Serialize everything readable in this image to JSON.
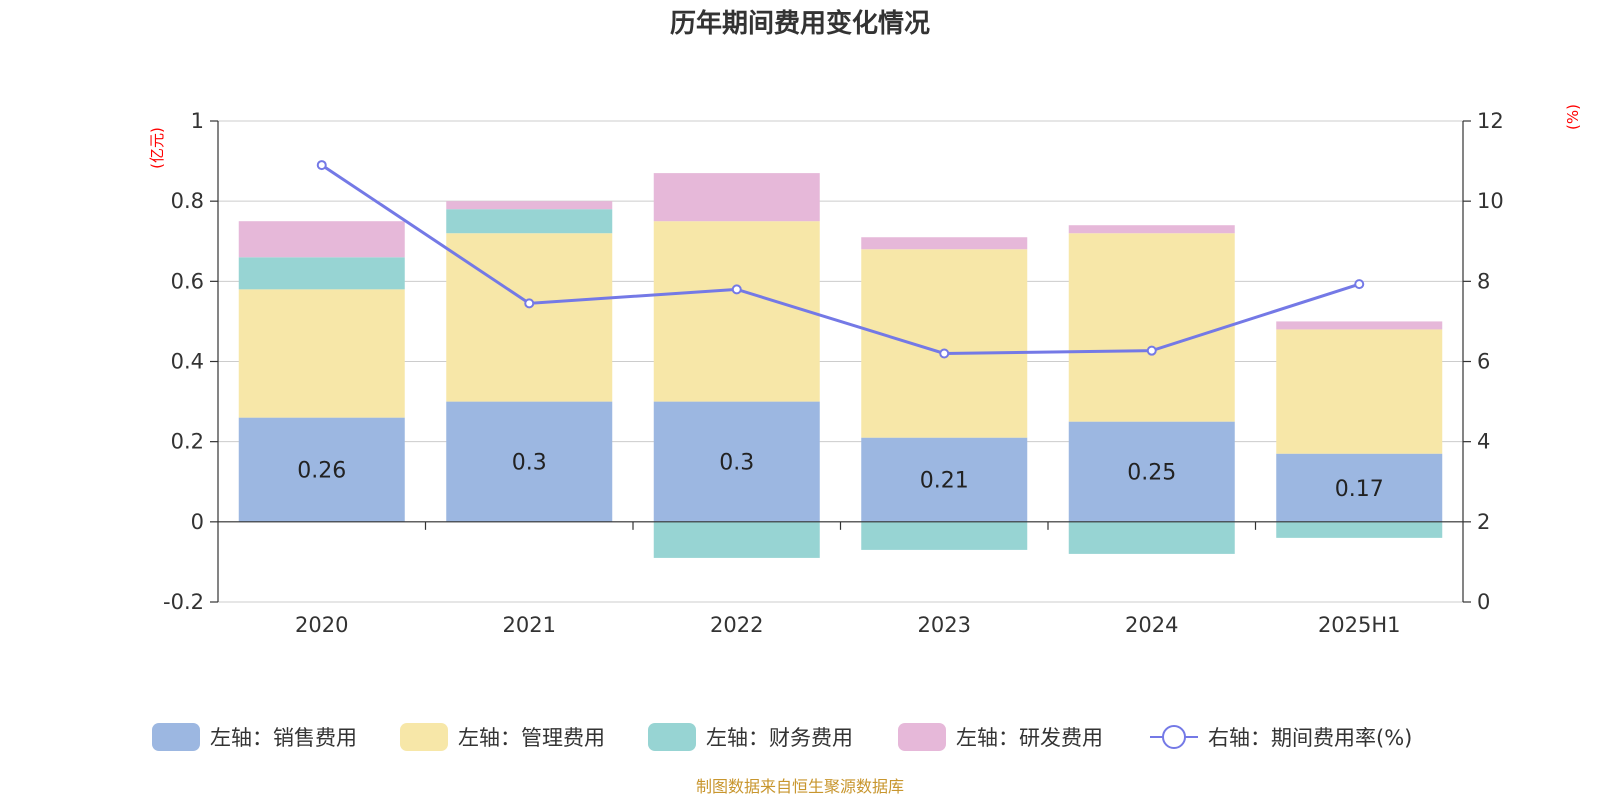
{
  "chart_data": {
    "type": "bar",
    "title": "历年期间费用变化情况",
    "categories": [
      "2020",
      "2021",
      "2022",
      "2023",
      "2024",
      "2025H1"
    ],
    "left_axis": {
      "unit": "(亿元)",
      "ylim": [
        -0.2,
        1
      ],
      "ticks": [
        -0.2,
        0,
        0.2,
        0.4,
        0.6,
        0.8,
        1
      ],
      "tick_labels": [
        "-0.2",
        "0",
        "0.2",
        "0.4",
        "0.6",
        "0.8",
        "1"
      ]
    },
    "right_axis": {
      "unit": "(%)",
      "ylim": [
        0,
        12
      ],
      "ticks": [
        0,
        2,
        4,
        6,
        8,
        10,
        12
      ],
      "tick_labels": [
        "0",
        "2",
        "4",
        "6",
        "8",
        "10",
        "12"
      ]
    },
    "series": [
      {
        "name": "左轴：销售费用",
        "type": "bar",
        "axis": "left",
        "color": "#9cb7e1",
        "values": [
          0.26,
          0.3,
          0.3,
          0.21,
          0.25,
          0.17
        ],
        "labels": [
          "0.26",
          "0.3",
          "0.3",
          "0.21",
          "0.25",
          "0.17"
        ]
      },
      {
        "name": "左轴：管理费用",
        "type": "bar",
        "axis": "left",
        "color": "#f7e7a8",
        "values": [
          0.32,
          0.42,
          0.45,
          0.47,
          0.47,
          0.31
        ]
      },
      {
        "name": "左轴：财务费用",
        "type": "bar",
        "axis": "left",
        "color": "#97d4d3",
        "values": [
          0.08,
          0.06,
          -0.09,
          -0.07,
          -0.08,
          -0.04
        ]
      },
      {
        "name": "左轴：研发费用",
        "type": "bar",
        "axis": "left",
        "color": "#e6b8d9",
        "values": [
          0.09,
          0.02,
          0.12,
          0.03,
          0.02,
          0.02
        ]
      },
      {
        "name": "右轴：期间费用率(%)",
        "type": "line",
        "axis": "right",
        "color": "#7479e6",
        "values": [
          10.9,
          7.45,
          7.8,
          6.2,
          6.27,
          7.93
        ]
      }
    ],
    "source": "制图数据来自恒生聚源数据库"
  }
}
